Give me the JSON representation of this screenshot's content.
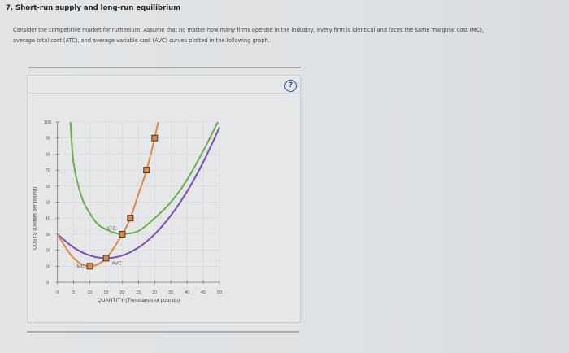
{
  "question": {
    "title": "7. Short-run supply and long-run equilibrium",
    "intro": "Consider the competitive market for ruthenium. Assume that no matter how many firms operate in the industry, every firm is identical and faces the same marginal cost (MC), average total cost (ATC), and average variable cost (AVC) curves plotted in the following graph."
  },
  "help_icon": "question-circle-icon",
  "help_label": "?",
  "chart_data": {
    "type": "line",
    "xlabel": "QUANTITY (Thousands of pounds)",
    "ylabel": "COSTS (Dollars per pound)",
    "xlim": [
      0,
      50
    ],
    "ylim": [
      0,
      100
    ],
    "xticks": [
      0,
      5,
      10,
      15,
      20,
      25,
      30,
      35,
      40,
      45,
      50
    ],
    "yticks": [
      0,
      10,
      20,
      30,
      40,
      50,
      60,
      70,
      80,
      90,
      100
    ],
    "grid": true,
    "series": [
      {
        "name": "MC",
        "color": "#e0884a",
        "marker": "square",
        "points": [
          [
            0,
            30
          ],
          [
            5,
            15
          ],
          [
            10,
            10
          ],
          [
            15,
            15
          ],
          [
            20,
            30
          ],
          [
            22.5,
            40
          ],
          [
            25,
            55
          ],
          [
            27.5,
            70
          ],
          [
            30,
            90
          ],
          [
            31.6,
            105
          ]
        ],
        "marked_points": [
          [
            10,
            10
          ],
          [
            15,
            15
          ],
          [
            20,
            30
          ],
          [
            22.5,
            40
          ],
          [
            27.5,
            70
          ],
          [
            30,
            90
          ]
        ]
      },
      {
        "name": "ATC",
        "color": "#6ab04c",
        "points": [
          [
            4,
            100
          ],
          [
            5,
            74
          ],
          [
            7.5,
            53
          ],
          [
            10,
            43
          ],
          [
            12.5,
            36
          ],
          [
            15,
            33
          ],
          [
            17.5,
            31
          ],
          [
            20,
            30
          ],
          [
            25,
            32
          ],
          [
            30,
            40
          ],
          [
            35,
            50
          ],
          [
            40,
            64
          ],
          [
            45,
            82
          ],
          [
            50,
            102
          ]
        ]
      },
      {
        "name": "AVC",
        "color": "#7a4fc0",
        "points": [
          [
            0,
            30
          ],
          [
            5,
            21.7
          ],
          [
            10,
            16.7
          ],
          [
            15,
            15
          ],
          [
            20,
            16.7
          ],
          [
            25,
            21.7
          ],
          [
            30,
            30
          ],
          [
            35,
            41.7
          ],
          [
            40,
            56.7
          ],
          [
            45,
            75
          ],
          [
            50,
            96.7
          ]
        ]
      }
    ],
    "annotations": [
      "MC",
      "ATC",
      "AVC"
    ]
  }
}
